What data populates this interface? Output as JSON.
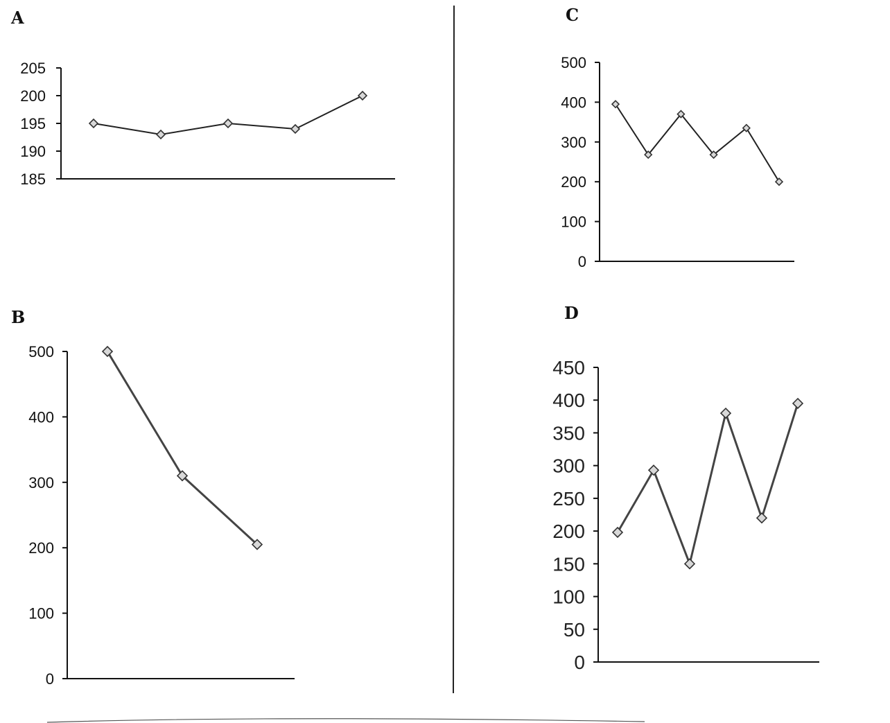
{
  "chart_data": [
    {
      "type": "line",
      "panel": "A",
      "x": [
        1,
        2,
        3,
        4,
        5
      ],
      "values": [
        195,
        193,
        195,
        194,
        200
      ],
      "ylim": [
        185,
        205
      ],
      "yticks": [
        "185",
        "190",
        "195",
        "200",
        "205"
      ],
      "grid": false,
      "marker": "diamond"
    },
    {
      "type": "line",
      "panel": "B",
      "x": [
        1,
        2,
        3
      ],
      "values": [
        500,
        310,
        205
      ],
      "ylim": [
        0,
        500
      ],
      "yticks": [
        "0",
        "100",
        "200",
        "300",
        "400",
        "500"
      ],
      "grid": false,
      "marker": "diamond"
    },
    {
      "type": "line",
      "panel": "C",
      "x": [
        1,
        2,
        3,
        4,
        5,
        6
      ],
      "values": [
        395,
        268,
        370,
        268,
        335,
        200
      ],
      "ylim": [
        0,
        500
      ],
      "yticks": [
        "0",
        "100",
        "200",
        "300",
        "400",
        "500"
      ],
      "grid": false,
      "marker": "diamond"
    },
    {
      "type": "line",
      "panel": "D",
      "x": [
        1,
        2,
        3,
        4,
        5,
        6
      ],
      "values": [
        198,
        293,
        150,
        380,
        220,
        395
      ],
      "ylim": [
        0,
        450
      ],
      "yticks": [
        "0",
        "50",
        "100",
        "150",
        "200",
        "250",
        "300",
        "350",
        "400",
        "450"
      ],
      "grid": false,
      "marker": "diamond"
    }
  ],
  "colors": {
    "line": "#222222",
    "marker_fill": "#d8d8d8",
    "background": "#ffffff"
  }
}
